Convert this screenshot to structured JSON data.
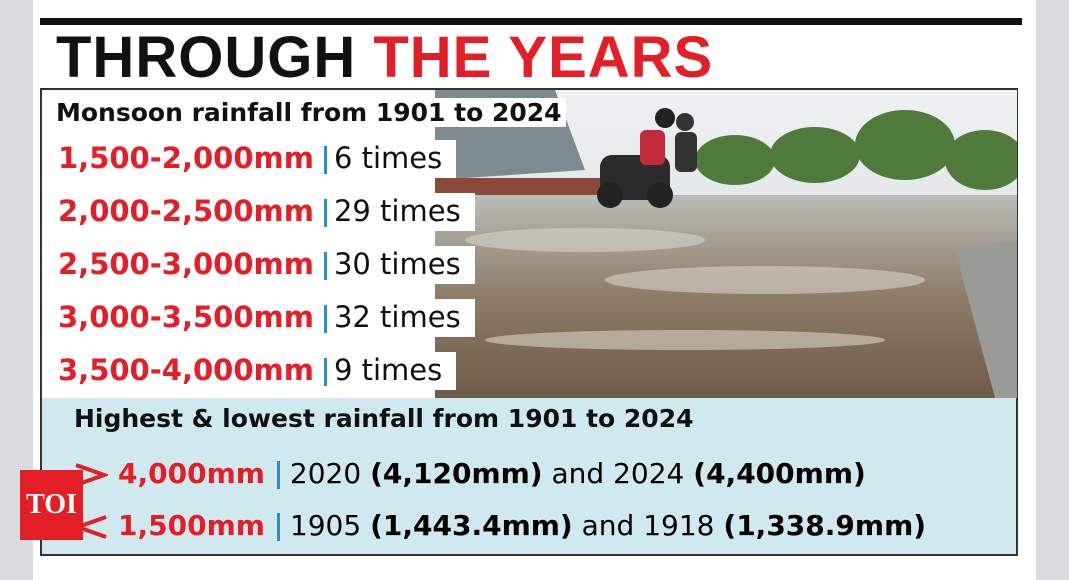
{
  "title": {
    "part_1": "THROUGH",
    "part_2": "THE YEARS"
  },
  "section_1": {
    "heading": "Monsoon rainfall from 1901 to 2024",
    "rows": [
      {
        "range": "1,500-2,000mm",
        "count": "6 times"
      },
      {
        "range": "2,000-2,500mm",
        "count": "29 times"
      },
      {
        "range": "2,500-3,000mm",
        "count": "30 times"
      },
      {
        "range": "3,000-3,500mm",
        "count": "32 times"
      },
      {
        "range": "3,500-4,000mm",
        "count": "9 times"
      }
    ]
  },
  "section_2": {
    "heading": "Highest & lowest rainfall from 1901 to 2024",
    "rows": [
      {
        "threshold": "4,000mm",
        "year_1": "2020",
        "value_1": "(4,120mm)",
        "joiner": "and",
        "year_2": "2024",
        "value_2": "(4,400mm)"
      },
      {
        "threshold": "1,500mm",
        "year_1": "1905",
        "value_1": "(1,443.4mm)",
        "joiner": "and",
        "year_2": "1918",
        "value_2": "(1,338.9mm)"
      }
    ]
  },
  "logo": "TOI"
}
